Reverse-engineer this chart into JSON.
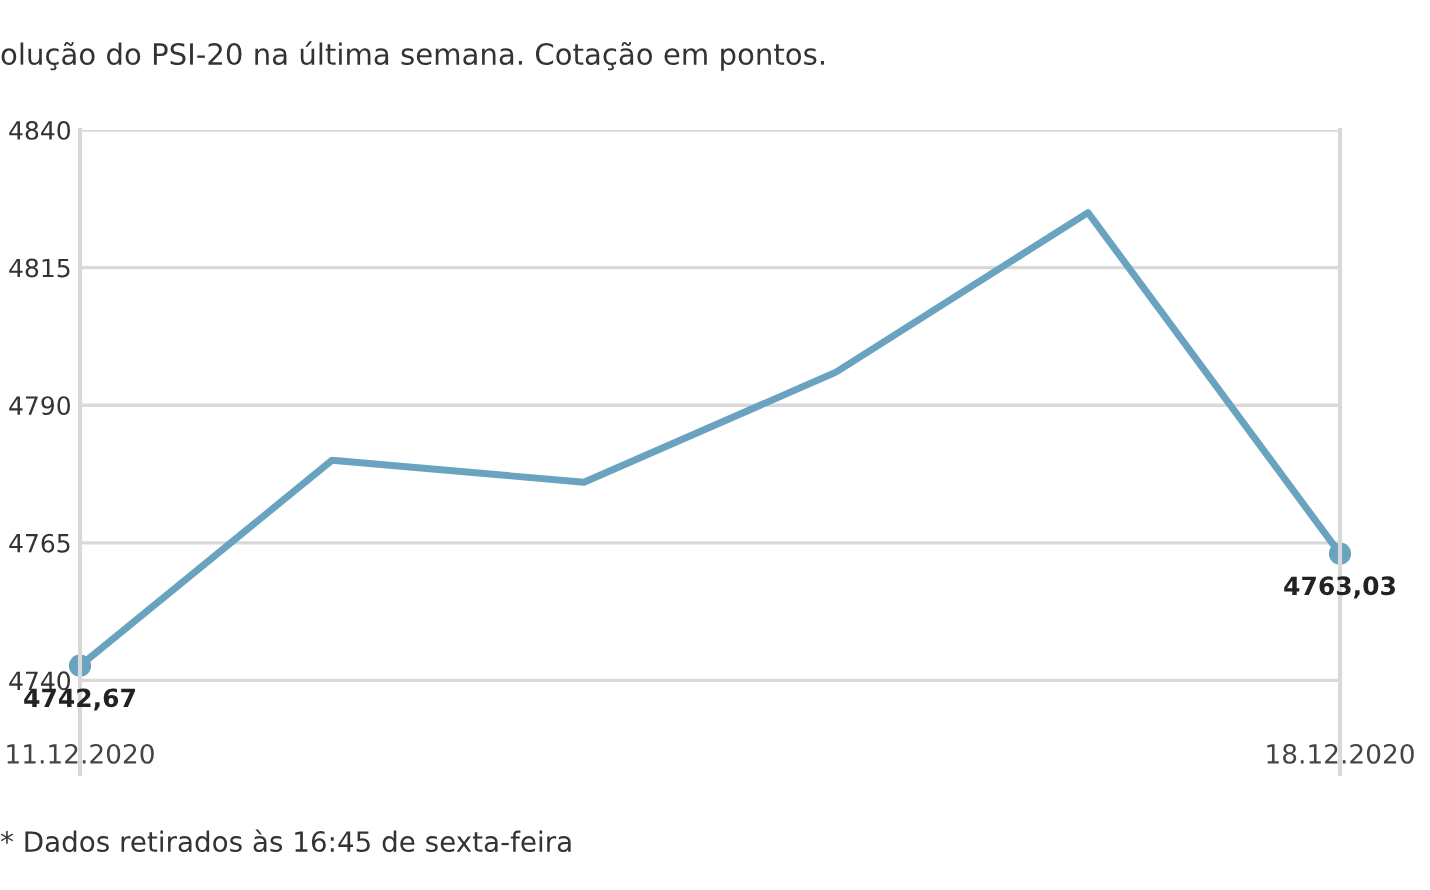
{
  "chart_data": {
    "type": "line",
    "title": "olução do PSI-20 na última semana. Cotação em pontos.",
    "annotations": [
      "* Dados retirados às 16:45 de sexta-feira"
    ],
    "categories": [
      "11.12.2020",
      null,
      null,
      null,
      null,
      "18.12.2020"
    ],
    "series": [
      {
        "color": "#6aa3bf",
        "values": [
          4742.67,
          4780,
          4776,
          4796,
          4825,
          4763.03
        ],
        "value_labels": [
          "4742,67",
          null,
          null,
          null,
          null,
          "4763,03"
        ]
      }
    ],
    "ylim": [
      4723,
      4840
    ],
    "yticks": [
      4740,
      4765,
      4790,
      4815,
      4840
    ],
    "grid": "y",
    "legend": false
  }
}
